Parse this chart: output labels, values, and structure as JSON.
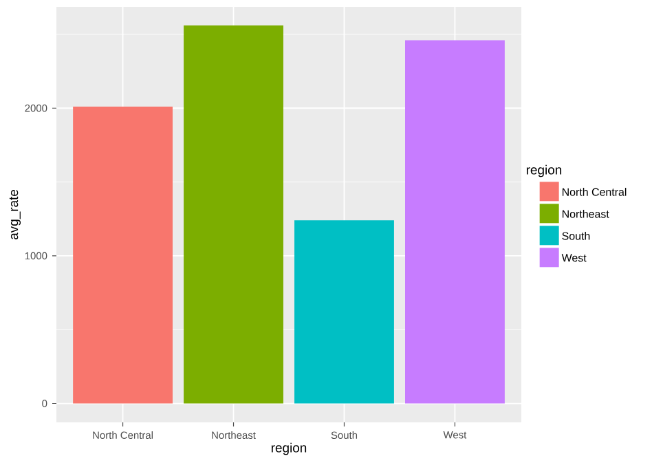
{
  "chart_data": {
    "type": "bar",
    "xlabel": "region",
    "ylabel": "avg_rate",
    "legend_title": "region",
    "categories": [
      "North Central",
      "Northeast",
      "South",
      "West"
    ],
    "series": [
      {
        "name": "North Central",
        "color": "#f8766d",
        "values": [
          2010,
          null,
          null,
          null
        ]
      },
      {
        "name": "Northeast",
        "color": "#7cae00",
        "values": [
          null,
          2560,
          null,
          null
        ]
      },
      {
        "name": "South",
        "color": "#00bfc4",
        "values": [
          null,
          null,
          1240,
          null
        ]
      },
      {
        "name": "West",
        "color": "#c77cff",
        "values": [
          null,
          null,
          null,
          2460
        ]
      }
    ],
    "ylim": [
      -128,
      2686
    ],
    "yticks": [
      0,
      1000,
      2000
    ],
    "grid": true,
    "legend": "right"
  }
}
